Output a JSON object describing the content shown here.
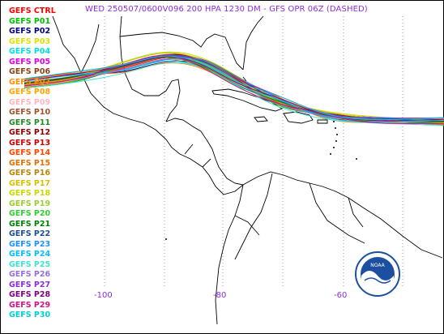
{
  "title": "WED 250507/0600V096  200 HPA 1230 DM - GFS OPR 06Z (DASHED)",
  "legend": [
    {
      "label": "GEFS CTRL",
      "color": "#ff0000"
    },
    {
      "label": "GEFS P01",
      "color": "#00c000"
    },
    {
      "label": "GEFS P02",
      "color": "#000080"
    },
    {
      "label": "GEFS P03",
      "color": "#e0e000"
    },
    {
      "label": "GEFS P04",
      "color": "#00e0e0"
    },
    {
      "label": "GEFS P05",
      "color": "#e000e0"
    },
    {
      "label": "GEFS P06",
      "color": "#8b4513"
    },
    {
      "label": "GEFS P07",
      "color": "#ff8c00"
    },
    {
      "label": "GEFS P08",
      "color": "#ffa500"
    },
    {
      "label": "GEFS P09",
      "color": "#ffb6c1"
    },
    {
      "label": "GEFS P10",
      "color": "#a0522d"
    },
    {
      "label": "GEFS P11",
      "color": "#228b22"
    },
    {
      "label": "GEFS P12",
      "color": "#8b0000"
    },
    {
      "label": "GEFS P13",
      "color": "#cc0000"
    },
    {
      "label": "GEFS P14",
      "color": "#ff4500"
    },
    {
      "label": "GEFS P15",
      "color": "#e07000"
    },
    {
      "label": "GEFS P16",
      "color": "#b8860b"
    },
    {
      "label": "GEFS P17",
      "color": "#d4c000"
    },
    {
      "label": "GEFS P18",
      "color": "#c8d800"
    },
    {
      "label": "GEFS P19",
      "color": "#9acd32"
    },
    {
      "label": "GEFS P20",
      "color": "#32cd32"
    },
    {
      "label": "GEFS P21",
      "color": "#008000"
    },
    {
      "label": "GEFS P22",
      "color": "#1e4f8c"
    },
    {
      "label": "GEFS P23",
      "color": "#1e90ff"
    },
    {
      "label": "GEFS P24",
      "color": "#00bfff"
    },
    {
      "label": "GEFS P25",
      "color": "#40e0d0"
    },
    {
      "label": "GEFS P26",
      "color": "#9370db"
    },
    {
      "label": "GEFS P27",
      "color": "#8a2be2"
    },
    {
      "label": "GEFS P28",
      "color": "#800080"
    },
    {
      "label": "GEFS P29",
      "color": "#c71585"
    },
    {
      "label": "GEFS P30",
      "color": "#00ced1"
    }
  ],
  "axis": {
    "lon_labels": [
      "-100",
      "-80",
      "-60"
    ],
    "color": "#8a2be2"
  },
  "logo": {
    "text": "NOAA",
    "name": "noaa-logo"
  }
}
